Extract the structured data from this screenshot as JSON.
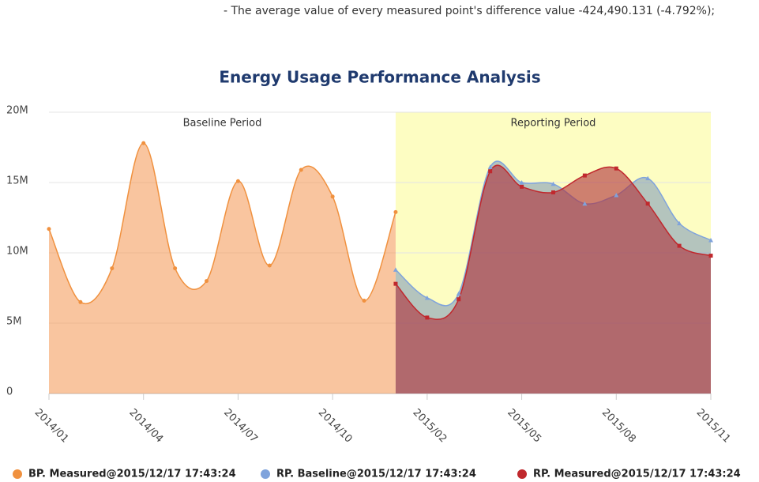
{
  "note": "- The average value of every measured point's difference value -424,490.131 (-4.792%);",
  "chart_data": {
    "type": "area",
    "title": "Energy Usage Performance Analysis",
    "categories": [
      "2014/01",
      null,
      null,
      "2014/04",
      null,
      null,
      "2014/07",
      null,
      null,
      "2014/10",
      null,
      null,
      "2015/02",
      null,
      null,
      "2015/05",
      null,
      null,
      "2015/08",
      null,
      null,
      "2015/11"
    ],
    "bands": [
      "Baseline Period",
      "Reporting Period"
    ],
    "band_color": "#fdfdc2",
    "series": [
      {
        "name": "BP. Measured@2015/12/17 17:43:24",
        "color": "#f0913f",
        "marker": "circle",
        "values": [
          11700000,
          6500000,
          8900000,
          17800000,
          8900000,
          8000000,
          15100000,
          9100000,
          15900000,
          14000000,
          6600000,
          12900000,
          null,
          null,
          null,
          null,
          null,
          null,
          null,
          null,
          null,
          null
        ]
      },
      {
        "name": "RP. Baseline@2015/12/17 17:43:24",
        "color": "#7fa3dc",
        "marker": "triangle",
        "values": [
          null,
          null,
          null,
          null,
          null,
          null,
          null,
          null,
          null,
          null,
          null,
          8800000,
          6800000,
          7100000,
          16100000,
          15000000,
          14900000,
          13500000,
          14100000,
          15300000,
          12100000,
          10900000
        ]
      },
      {
        "name": "RP. Measured@2015/12/17 17:43:24",
        "color": "#c0282d",
        "marker": "square",
        "values": [
          null,
          null,
          null,
          null,
          null,
          null,
          null,
          null,
          null,
          null,
          null,
          7800000,
          5400000,
          6700000,
          15800000,
          14700000,
          14300000,
          15500000,
          16000000,
          13500000,
          10500000,
          9800000
        ]
      }
    ],
    "ylim": [
      0,
      20000000
    ],
    "yticks": [
      {
        "value": 0,
        "label": "0"
      },
      {
        "value": 5000000,
        "label": "5M"
      },
      {
        "value": 10000000,
        "label": "10M"
      },
      {
        "value": 15000000,
        "label": "15M"
      },
      {
        "value": 20000000,
        "label": "20M"
      }
    ],
    "grid": true
  }
}
